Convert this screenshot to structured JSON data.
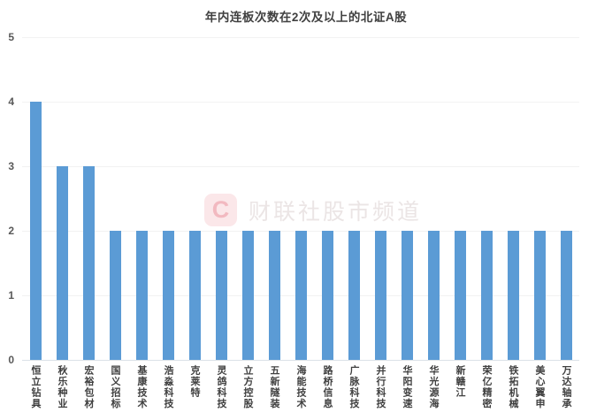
{
  "title": "年内连板次数在2次及以上的北证A股",
  "watermark": {
    "logo_letter": "C",
    "text": "财联社股市频道"
  },
  "colors": {
    "bar": "#5B9BD5",
    "title_text": "#404040",
    "axis_tick_text": "#595959",
    "category_text": "#404040",
    "gridline": "#f2f2f2",
    "axis_line": "#dbe2e8",
    "watermark_logo_bg": "#fbe7e9",
    "watermark_logo_letter": "#f2b9c0",
    "watermark_text": "#ebe5e5",
    "background": "#ffffff"
  },
  "chart_data": {
    "type": "bar",
    "title": "年内连板次数在2次及以上的北证A股",
    "categories": [
      "恒立钻具",
      "秋乐种业",
      "宏裕包材",
      "国义招标",
      "基康技术",
      "浩淼科技",
      "克莱特",
      "灵鸽科技",
      "立方控股",
      "五新隧装",
      "海能技术",
      "路桥信息",
      "广脉科技",
      "并行科技",
      "华阳变速",
      "华光源海",
      "新赣江",
      "荣亿精密",
      "铁拓机械",
      "美心翼申",
      "万达轴承"
    ],
    "values": [
      4,
      3,
      3,
      2,
      2,
      2,
      2,
      2,
      2,
      2,
      2,
      2,
      2,
      2,
      2,
      2,
      2,
      2,
      2,
      2,
      2
    ],
    "xlabel": "",
    "ylabel": "",
    "ylim": [
      0,
      5
    ],
    "yticks": [
      0,
      1,
      2,
      3,
      4,
      5
    ],
    "grid": true,
    "legend": false,
    "bar_color": "#5B9BD5"
  }
}
